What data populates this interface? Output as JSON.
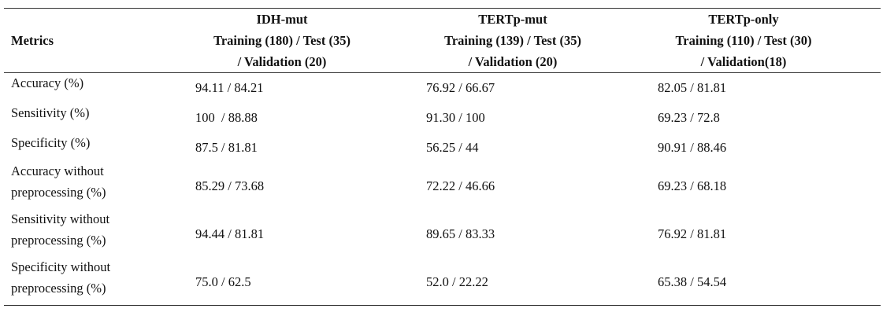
{
  "table": {
    "header": {
      "metric": "Metrics",
      "columns": [
        [
          "IDH-mut",
          "Training (180) / Test (35)",
          "/ Validation (20)"
        ],
        [
          "TERTp-mut",
          "Training (139) / Test (35)",
          "/ Validation (20)"
        ],
        [
          "TERTp-only",
          "Training (110) / Test (30)",
          "/ Validation(18)"
        ]
      ]
    },
    "rows": [
      {
        "label": [
          "Accuracy (%)"
        ],
        "cells": [
          "94.11 / 84.21",
          "76.92 / 66.67",
          "82.05 / 81.81"
        ]
      },
      {
        "label": [
          "Sensitivity (%)"
        ],
        "cells": [
          "100  / 88.88",
          "91.30 / 100",
          "69.23 / 72.8"
        ]
      },
      {
        "label": [
          "Specificity (%)"
        ],
        "cells": [
          "87.5 / 81.81",
          "56.25 / 44",
          "90.91 / 88.46"
        ]
      },
      {
        "label": [
          "Accuracy without",
          "preprocessing (%)"
        ],
        "cells": [
          "85.29 / 73.68",
          "72.22 / 46.66",
          "69.23 / 68.18"
        ]
      },
      {
        "label": [
          "Sensitivity without",
          "preprocessing (%)"
        ],
        "cells": [
          "94.44 / 81.81",
          "89.65 / 83.33",
          "76.92 / 81.81"
        ]
      },
      {
        "label": [
          "Specificity without",
          "preprocessing (%)"
        ],
        "cells": [
          "75.0 / 62.5",
          "52.0 / 22.22",
          "65.38 / 54.54"
        ]
      }
    ]
  }
}
